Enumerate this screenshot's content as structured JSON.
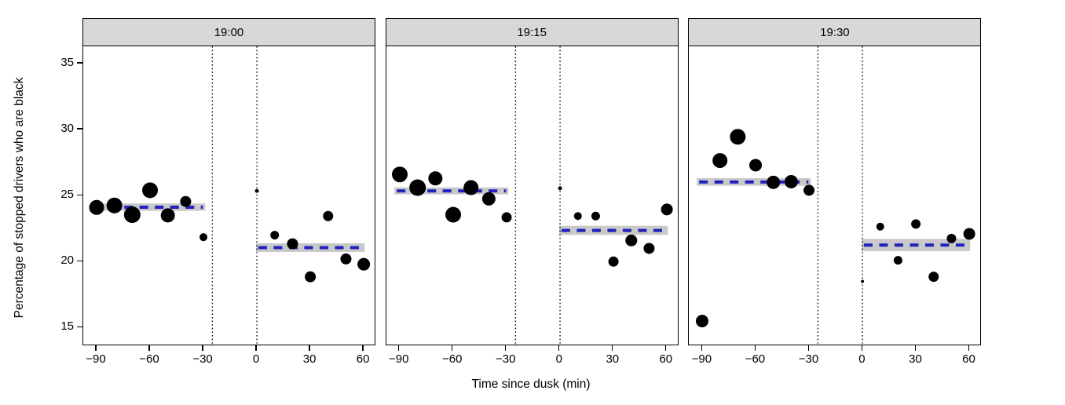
{
  "figure_title": "",
  "chart_data": {
    "type": "scatter",
    "title": "",
    "xlabel": "Time since dusk (min)",
    "ylabel": "Percentage of stopped drivers who are black",
    "xlim": [
      -97.5,
      67
    ],
    "ylim": [
      13.6,
      36.3
    ],
    "grid": "off",
    "legend": "none",
    "x_ticks": [
      {
        "v": -90,
        "label": "−90"
      },
      {
        "v": -60,
        "label": "−60"
      },
      {
        "v": -30,
        "label": "−30"
      },
      {
        "v": 0,
        "label": "0"
      },
      {
        "v": 30,
        "label": "30"
      },
      {
        "v": 60,
        "label": "60"
      }
    ],
    "y_ticks": [
      {
        "v": 15,
        "label": "15"
      },
      {
        "v": 20,
        "label": "20"
      },
      {
        "v": 25,
        "label": "25"
      },
      {
        "v": 30,
        "label": "30"
      },
      {
        "v": 35,
        "label": "35"
      }
    ],
    "dusk_window_lines_x": [
      -25,
      0
    ],
    "facets": [
      {
        "label": "19:00",
        "points": [
          {
            "x": -90,
            "y": 24.1,
            "r": 9.5
          },
          {
            "x": -80,
            "y": 24.25,
            "r": 10
          },
          {
            "x": -70,
            "y": 23.55,
            "r": 10.5
          },
          {
            "x": -60,
            "y": 25.4,
            "r": 10
          },
          {
            "x": -50,
            "y": 23.5,
            "r": 9
          },
          {
            "x": -40,
            "y": 24.55,
            "r": 7
          },
          {
            "x": -30,
            "y": 21.85,
            "r": 5
          },
          {
            "x": 0,
            "y": 25.35,
            "r": 2.5
          },
          {
            "x": 10,
            "y": 22.0,
            "r": 5.5
          },
          {
            "x": 20,
            "y": 21.35,
            "r": 7
          },
          {
            "x": 30,
            "y": 18.85,
            "r": 7
          },
          {
            "x": 40,
            "y": 23.45,
            "r": 6.5
          },
          {
            "x": 50,
            "y": 20.2,
            "r": 7
          },
          {
            "x": 60,
            "y": 19.8,
            "r": 8
          }
        ],
        "mean_before_dusk": {
          "y": 24.12,
          "band_low": 23.84,
          "band_high": 24.4,
          "x_start": -93,
          "x_end": -29
        },
        "mean_after_dusk": {
          "y": 21.06,
          "band_low": 20.73,
          "band_high": 21.39,
          "x_start": -0.5,
          "x_end": 60.5
        }
      },
      {
        "label": "19:15",
        "points": [
          {
            "x": -90,
            "y": 26.6,
            "r": 10
          },
          {
            "x": -80,
            "y": 25.6,
            "r": 10.5
          },
          {
            "x": -70,
            "y": 26.3,
            "r": 9
          },
          {
            "x": -60,
            "y": 23.55,
            "r": 10
          },
          {
            "x": -50,
            "y": 25.6,
            "r": 9.5
          },
          {
            "x": -40,
            "y": 24.75,
            "r": 8.5
          },
          {
            "x": -30,
            "y": 23.35,
            "r": 6.5
          },
          {
            "x": 0,
            "y": 25.55,
            "r": 2.5
          },
          {
            "x": 10,
            "y": 23.45,
            "r": 5
          },
          {
            "x": 20,
            "y": 23.45,
            "r": 5.5
          },
          {
            "x": 30,
            "y": 20.0,
            "r": 6.5
          },
          {
            "x": 40,
            "y": 21.6,
            "r": 7.5
          },
          {
            "x": 50,
            "y": 21.0,
            "r": 7
          },
          {
            "x": 60,
            "y": 23.95,
            "r": 7.5
          }
        ],
        "mean_before_dusk": {
          "y": 25.35,
          "band_low": 25.09,
          "band_high": 25.62,
          "x_start": -93,
          "x_end": -29
        },
        "mean_after_dusk": {
          "y": 22.36,
          "band_low": 22.02,
          "band_high": 22.71,
          "x_start": -0.5,
          "x_end": 60.5
        }
      },
      {
        "label": "19:30",
        "points": [
          {
            "x": -90,
            "y": 15.5,
            "r": 8
          },
          {
            "x": -80,
            "y": 27.65,
            "r": 9.5
          },
          {
            "x": -70,
            "y": 29.45,
            "r": 10
          },
          {
            "x": -60,
            "y": 27.3,
            "r": 8
          },
          {
            "x": -50,
            "y": 26.0,
            "r": 8.5
          },
          {
            "x": -40,
            "y": 26.05,
            "r": 8.5
          },
          {
            "x": -30,
            "y": 25.4,
            "r": 7
          },
          {
            "x": 0,
            "y": 18.5,
            "r": 2
          },
          {
            "x": 10,
            "y": 22.65,
            "r": 5
          },
          {
            "x": 20,
            "y": 20.1,
            "r": 5.5
          },
          {
            "x": 30,
            "y": 22.85,
            "r": 6
          },
          {
            "x": 40,
            "y": 18.85,
            "r": 6.5
          },
          {
            "x": 50,
            "y": 21.75,
            "r": 6
          },
          {
            "x": 60,
            "y": 22.1,
            "r": 7.5
          }
        ],
        "mean_before_dusk": {
          "y": 26.03,
          "band_low": 25.74,
          "band_high": 26.32,
          "x_start": -93,
          "x_end": -29
        },
        "mean_after_dusk": {
          "y": 21.25,
          "band_low": 20.79,
          "band_high": 21.72,
          "x_start": -0.5,
          "x_end": 60.5
        }
      }
    ],
    "colors": {
      "point": "#000000",
      "mean_line": "#2121be",
      "ci_band": "#c9c9c9",
      "strip_bg": "#d8d8d8",
      "dusk_line": "#000000",
      "panel_border": "#000000"
    }
  }
}
